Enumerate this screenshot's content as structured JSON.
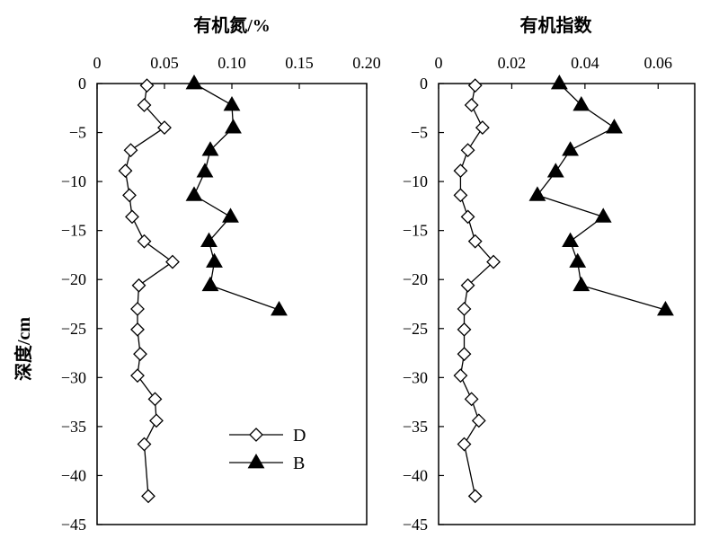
{
  "chart_data": [
    {
      "type": "line",
      "title": "有机氮/%",
      "ylabel": "深度/cm",
      "xlim": [
        0,
        0.2
      ],
      "ylim": [
        -45,
        0
      ],
      "xticks": [
        0,
        0.05,
        0.1,
        0.15,
        0.2
      ],
      "xtick_labels": [
        "0",
        "0.05",
        "0.10",
        "0.15",
        "0.20"
      ],
      "yticks": [
        0,
        -5,
        -10,
        -15,
        -20,
        -25,
        -30,
        -35,
        -40,
        -45
      ],
      "ytick_labels": [
        "0",
        "−5",
        "−10",
        "−15",
        "−20",
        "−25",
        "−30",
        "−35",
        "−40",
        "−45"
      ],
      "x_axis_position": "top",
      "legend": "bottom-right",
      "series": [
        {
          "name": "D",
          "marker": "diamond-open",
          "points": [
            {
              "x": 0.037,
              "y": -0.2
            },
            {
              "x": 0.035,
              "y": -2.2
            },
            {
              "x": 0.05,
              "y": -4.5
            },
            {
              "x": 0.025,
              "y": -6.8
            },
            {
              "x": 0.021,
              "y": -8.9
            },
            {
              "x": 0.024,
              "y": -11.4
            },
            {
              "x": 0.026,
              "y": -13.6
            },
            {
              "x": 0.035,
              "y": -16.1
            },
            {
              "x": 0.056,
              "y": -18.2
            },
            {
              "x": 0.031,
              "y": -20.6
            },
            {
              "x": 0.03,
              "y": -23.0
            },
            {
              "x": 0.03,
              "y": -25.1
            },
            {
              "x": 0.032,
              "y": -27.6
            },
            {
              "x": 0.03,
              "y": -29.8
            },
            {
              "x": 0.043,
              "y": -32.2
            },
            {
              "x": 0.044,
              "y": -34.4
            },
            {
              "x": 0.035,
              "y": -36.8
            },
            {
              "x": 0.038,
              "y": -42.1
            }
          ]
        },
        {
          "name": "B",
          "marker": "triangle-filled",
          "points": [
            {
              "x": 0.072,
              "y": 0
            },
            {
              "x": 0.1,
              "y": -2.2
            },
            {
              "x": 0.101,
              "y": -4.5
            },
            {
              "x": 0.084,
              "y": -6.8
            },
            {
              "x": 0.08,
              "y": -9.0
            },
            {
              "x": 0.072,
              "y": -11.4
            },
            {
              "x": 0.099,
              "y": -13.6
            },
            {
              "x": 0.083,
              "y": -16.1
            },
            {
              "x": 0.087,
              "y": -18.2
            },
            {
              "x": 0.084,
              "y": -20.6
            },
            {
              "x": 0.135,
              "y": -23.1
            }
          ]
        }
      ]
    },
    {
      "type": "line",
      "title": "有机指数",
      "ylabel": "",
      "xlim": [
        0,
        0.07
      ],
      "ylim": [
        -45,
        0
      ],
      "xticks": [
        0,
        0.02,
        0.04,
        0.06
      ],
      "xtick_labels": [
        "0",
        "0.02",
        "0.04",
        "0.06"
      ],
      "yticks": [
        0,
        -5,
        -10,
        -15,
        -20,
        -25,
        -30,
        -35,
        -40,
        -45
      ],
      "ytick_labels": [
        "0",
        "−5",
        "−10",
        "−15",
        "−20",
        "−25",
        "−30",
        "−35",
        "−40",
        "−45"
      ],
      "x_axis_position": "top",
      "series": [
        {
          "name": "D",
          "marker": "diamond-open",
          "points": [
            {
              "x": 0.01,
              "y": -0.2
            },
            {
              "x": 0.009,
              "y": -2.2
            },
            {
              "x": 0.012,
              "y": -4.5
            },
            {
              "x": 0.008,
              "y": -6.8
            },
            {
              "x": 0.006,
              "y": -8.9
            },
            {
              "x": 0.006,
              "y": -11.4
            },
            {
              "x": 0.008,
              "y": -13.6
            },
            {
              "x": 0.01,
              "y": -16.1
            },
            {
              "x": 0.015,
              "y": -18.2
            },
            {
              "x": 0.008,
              "y": -20.6
            },
            {
              "x": 0.007,
              "y": -23.0
            },
            {
              "x": 0.007,
              "y": -25.1
            },
            {
              "x": 0.007,
              "y": -27.6
            },
            {
              "x": 0.006,
              "y": -29.8
            },
            {
              "x": 0.009,
              "y": -32.2
            },
            {
              "x": 0.011,
              "y": -34.4
            },
            {
              "x": 0.007,
              "y": -36.8
            },
            {
              "x": 0.01,
              "y": -42.1
            }
          ]
        },
        {
          "name": "B",
          "marker": "triangle-filled",
          "points": [
            {
              "x": 0.033,
              "y": 0
            },
            {
              "x": 0.039,
              "y": -2.2
            },
            {
              "x": 0.048,
              "y": -4.5
            },
            {
              "x": 0.036,
              "y": -6.8
            },
            {
              "x": 0.032,
              "y": -9.0
            },
            {
              "x": 0.027,
              "y": -11.4
            },
            {
              "x": 0.045,
              "y": -13.6
            },
            {
              "x": 0.036,
              "y": -16.1
            },
            {
              "x": 0.038,
              "y": -18.2
            },
            {
              "x": 0.039,
              "y": -20.6
            },
            {
              "x": 0.062,
              "y": -23.1
            }
          ]
        }
      ]
    }
  ]
}
